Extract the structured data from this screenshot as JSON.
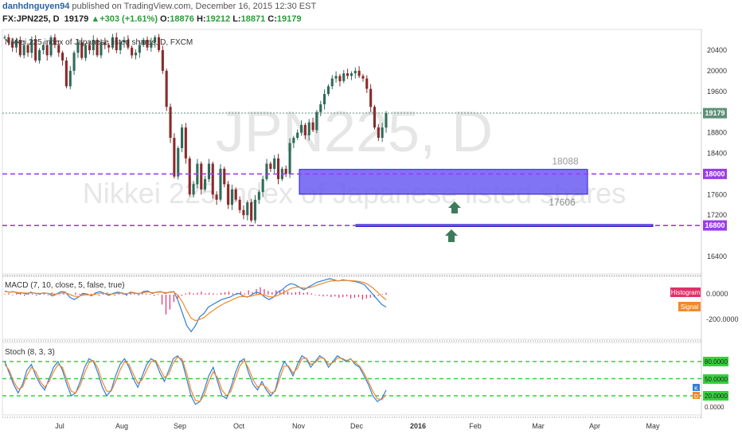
{
  "header": {
    "username": "danhdnguyen94",
    "published_text": "published on TradingView.com, December 16, 2015 12:30 EST",
    "symbol": "FX:JPN225, D",
    "last": "19179",
    "change_arrow": "▲",
    "change": "+303 (+1.61%)",
    "open_label": "O:",
    "open": "18876",
    "high_label": "H:",
    "high": "19212",
    "low_label": "L:",
    "low": "18871",
    "close_label": "C:",
    "close": "19179"
  },
  "colors": {
    "candle_up": "#2f6b5a",
    "candle_down": "#8b2a2a",
    "zone_fill": "#6a5cf2",
    "zone_stroke": "#2a1dcc",
    "support_line": "#9a3ee6",
    "arrow": "#3c7c5a",
    "macd_line": "#2f7fd6",
    "signal_line": "#ef8a2c",
    "histogram": "#e0306a",
    "stoch_k": "#2f7fd6",
    "stoch_d": "#ef8a2c",
    "stoch_band": "#35d23c",
    "last_price_badge": "#5f8f77"
  },
  "chart_data": [
    {
      "type": "candlestick",
      "title": "Nikkei 225 index of Japanese listed shares, D, FXCM",
      "watermark": [
        "JPN225, D",
        "Nikkei 225 index of Japanese listed shares"
      ],
      "x_tick_labels": [
        "Jul",
        "Aug",
        "Sep",
        "Oct",
        "Nov",
        "Dec",
        "2016",
        "Feb",
        "Mar",
        "Apr",
        "May"
      ],
      "y_tick_labels": [
        "20400",
        "20000",
        "19600",
        "19200",
        "18800",
        "18400",
        "18000",
        "17600",
        "17200",
        "16800",
        "16400"
      ],
      "ylim": [
        16100,
        20750
      ],
      "grid": false,
      "close_path": [
        20650,
        20550,
        20450,
        20600,
        20300,
        20500,
        20350,
        20600,
        20200,
        20400,
        20500,
        20300,
        20650,
        20500,
        20350,
        20200,
        19700,
        20000,
        20350,
        20550,
        20250,
        20500,
        20400,
        20600,
        20300,
        20550,
        20500,
        20450,
        20650,
        20400,
        20550,
        20600,
        20450,
        20300,
        20350,
        20500,
        20600,
        20450,
        20550,
        20650,
        20400,
        20000,
        19300,
        18700,
        17950,
        18500,
        18900,
        18300,
        17600,
        17800,
        18200,
        17700,
        17900,
        18200,
        17600,
        17500,
        18100,
        17800,
        17400,
        17700,
        17500,
        17300,
        17200,
        17450,
        17100,
        17500,
        17650,
        17900,
        18200,
        18100,
        18300,
        17900,
        18100,
        18000,
        18600,
        18700,
        18800,
        18950,
        18750,
        19000,
        18850,
        19200,
        19350,
        19550,
        19700,
        19850,
        19900,
        19800,
        19950,
        19900,
        19950,
        20000,
        19900,
        19850,
        19650,
        19300,
        18900,
        18700,
        18900,
        19179
      ],
      "current_price": 19179,
      "horizontal_levels": [
        18000,
        17000
      ],
      "zones": [
        {
          "upper": 18088,
          "lower": 17606,
          "upper_label": "18088",
          "lower_label": "17606"
        },
        {
          "upper": 17020,
          "lower": 16980
        }
      ],
      "arrows": [
        "up",
        "up"
      ]
    },
    {
      "type": "line",
      "title": "MACD (7, 10, close, 5, false, true)",
      "series": [
        {
          "name": "Histogram",
          "kind": "bar",
          "values": [
            5,
            10,
            -5,
            8,
            15,
            -10,
            12,
            6,
            -8,
            10,
            14,
            -6,
            18,
            8,
            -4,
            10,
            12,
            -8,
            16,
            6,
            10,
            -6,
            8,
            14,
            -10,
            10,
            18,
            4,
            -8,
            12,
            8,
            -10,
            14,
            10,
            -6,
            12,
            8,
            6,
            -10,
            6,
            -80,
            -160,
            -120,
            -60,
            -30,
            -10,
            10,
            20,
            10,
            15,
            25,
            10,
            15,
            10,
            5,
            15,
            20,
            25,
            10,
            15,
            25,
            10,
            35,
            20,
            45,
            60,
            45,
            30,
            20,
            35,
            30,
            40,
            25,
            15,
            20,
            25,
            15,
            20,
            10,
            -5,
            -10,
            -15,
            -10,
            -20,
            -15,
            -25,
            -20,
            -15,
            -30,
            -25,
            -20,
            -40,
            -30,
            -25,
            -20,
            -10,
            5,
            15
          ]
        },
        {
          "name": "MACD",
          "values": [
            30,
            20,
            25,
            10,
            15,
            5,
            20,
            10,
            5,
            15,
            10,
            -10,
            5,
            25,
            20,
            -20,
            -40,
            -20,
            10,
            5,
            -10,
            15,
            25,
            10,
            -5,
            10,
            20,
            15,
            0,
            20,
            15,
            5,
            25,
            30,
            10,
            20,
            25,
            10,
            20,
            25,
            -50,
            -150,
            -250,
            -300,
            -250,
            -180,
            -150,
            -100,
            -80,
            -60,
            -40,
            -30,
            -20,
            0,
            10,
            -10,
            -20,
            0,
            20,
            10,
            -20,
            -40,
            -20,
            20,
            40,
            70,
            90,
            80,
            60,
            40,
            60,
            80,
            100,
            110,
            120,
            130,
            120,
            110,
            120,
            115,
            110,
            105,
            95,
            80,
            40,
            0,
            -40,
            -80,
            -100
          ]
        },
        {
          "name": "Signal",
          "values": [
            25,
            22,
            22,
            18,
            16,
            12,
            14,
            12,
            10,
            12,
            11,
            4,
            4,
            12,
            15,
            2,
            -12,
            -15,
            -4,
            0,
            -4,
            4,
            12,
            11,
            4,
            6,
            12,
            13,
            8,
            13,
            14,
            10,
            16,
            21,
            17,
            18,
            21,
            17,
            18,
            21,
            -5,
            -60,
            -130,
            -190,
            -210,
            -200,
            -185,
            -155,
            -130,
            -105,
            -83,
            -65,
            -50,
            -33,
            -18,
            -15,
            -17,
            -11,
            0,
            3,
            -5,
            -17,
            -18,
            -5,
            10,
            30,
            50,
            60,
            60,
            53,
            55,
            63,
            76,
            88,
            99,
            109,
            113,
            112,
            115,
            115,
            113,
            110,
            105,
            97,
            78,
            52,
            21,
            -13,
            -42
          ]
        }
      ],
      "y_tick_labels": [
        "0.0000",
        "-200.0000"
      ],
      "legend": [
        "Histogram",
        "Signal"
      ],
      "legend_placement": "right"
    },
    {
      "type": "line",
      "title": "Stoch (8, 3, 3)",
      "series": [
        {
          "name": "K",
          "values": [
            80,
            60,
            40,
            25,
            40,
            65,
            75,
            55,
            40,
            30,
            50,
            70,
            80,
            65,
            40,
            20,
            25,
            45,
            70,
            85,
            80,
            60,
            35,
            20,
            30,
            55,
            75,
            85,
            70,
            50,
            35,
            55,
            75,
            85,
            80,
            60,
            45,
            65,
            85,
            90,
            80,
            50,
            20,
            5,
            10,
            30,
            55,
            70,
            45,
            20,
            15,
            35,
            60,
            80,
            85,
            60,
            40,
            30,
            45,
            30,
            20,
            30,
            60,
            80,
            70,
            55,
            75,
            90,
            85,
            70,
            80,
            90,
            85,
            70,
            80,
            90,
            85,
            80,
            85,
            75,
            70,
            55,
            40,
            20,
            10,
            15,
            30
          ]
        },
        {
          "name": "D",
          "values": [
            75,
            65,
            45,
            32,
            35,
            55,
            70,
            62,
            45,
            35,
            45,
            62,
            75,
            70,
            48,
            28,
            25,
            38,
            60,
            78,
            82,
            68,
            45,
            28,
            28,
            45,
            65,
            80,
            75,
            58,
            42,
            48,
            65,
            80,
            82,
            68,
            52,
            58,
            78,
            88,
            84,
            60,
            30,
            12,
            10,
            22,
            45,
            62,
            52,
            30,
            20,
            28,
            50,
            72,
            82,
            68,
            48,
            35,
            40,
            35,
            25,
            28,
            50,
            72,
            72,
            60,
            68,
            85,
            86,
            75,
            78,
            86,
            86,
            75,
            78,
            86,
            86,
            82,
            84,
            78,
            72,
            60,
            45,
            28,
            15,
            13,
            22
          ]
        }
      ],
      "bands": [
        80,
        50,
        20
      ],
      "y_tick_labels": [
        "80.0000",
        "50.0000",
        "20.0000",
        "0.0000"
      ],
      "legend": [
        "K",
        "D"
      ],
      "ylim": [
        0,
        100
      ]
    }
  ]
}
